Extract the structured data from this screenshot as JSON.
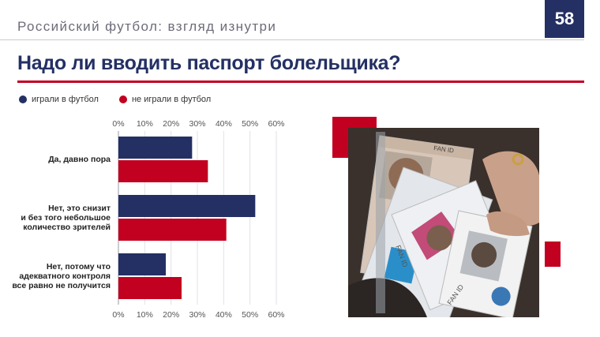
{
  "header": {
    "subtitle": "Российский футбол: взгляд изнутри",
    "page_number": "58"
  },
  "title": "Надо ли вводить паспорт болельщика?",
  "legend": [
    {
      "label": "играли в футбол",
      "color": "#243064"
    },
    {
      "label": "не играли в футбол",
      "color": "#c2001f"
    }
  ],
  "colors": {
    "accent": "#c2001f",
    "brand": "#243064"
  },
  "chart_data": {
    "type": "bar",
    "orientation": "horizontal",
    "categories": [
      [
        "Да, давно пора"
      ],
      [
        "Нет, это снизит",
        "и без того небольшое",
        "количество зрителей"
      ],
      [
        "Нет, потому что",
        "адекватного контроля",
        "все равно не получится"
      ]
    ],
    "series": [
      {
        "name": "играли в футбол",
        "values": [
          28,
          52,
          18
        ]
      },
      {
        "name": "не играли в футбол",
        "values": [
          34,
          41,
          24
        ]
      }
    ],
    "ticks": [
      "0%",
      "10%",
      "20%",
      "30%",
      "40%",
      "50%",
      "60%"
    ],
    "xlim": [
      0,
      60
    ],
    "grid": true,
    "legend_position": "top-left"
  },
  "photo": {
    "id_labels": [
      "FAN ID",
      "FAN ID",
      "FAN ID"
    ]
  }
}
